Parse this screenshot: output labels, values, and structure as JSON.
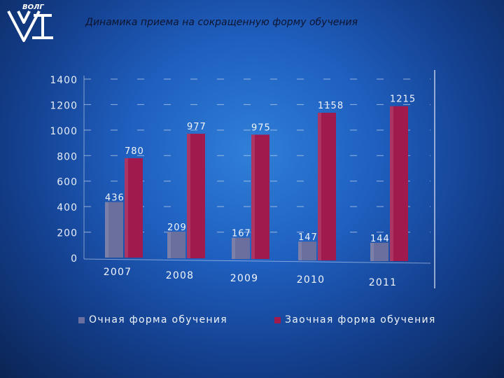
{
  "header": {
    "logo_text": "ВОЛГ",
    "title": "Динамика приема на сокращенную форму обучения"
  },
  "chart_data": {
    "type": "bar",
    "title": "Динамика приема на сокращенную форму обучения",
    "categories": [
      "2007",
      "2008",
      "2009",
      "2010",
      "2011"
    ],
    "series": [
      {
        "name": "Очная форма обучения",
        "values": [
          436,
          209,
          167,
          147,
          144
        ],
        "color": "#6a6f9e"
      },
      {
        "name": "Заочная форма обучения",
        "values": [
          780,
          977,
          975,
          1158,
          1215
        ],
        "color": "#a01a4e"
      }
    ],
    "ylim": [
      0,
      1400
    ],
    "yticks": [
      "0",
      "200",
      "400",
      "600",
      "800",
      "1000",
      "1200",
      "1400"
    ],
    "grid": true,
    "legend_position": "bottom",
    "xlabel": "",
    "ylabel": ""
  }
}
